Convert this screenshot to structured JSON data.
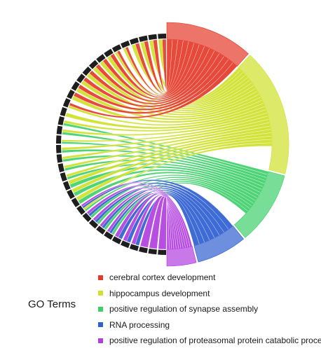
{
  "legend": {
    "title": "GO Terms",
    "items": [
      {
        "label": "cerebral cortex development",
        "color": "#e5392a"
      },
      {
        "label": "hippocampus development",
        "color": "#cfe12a"
      },
      {
        "label": "positive regulation of synapse assembly",
        "color": "#3fcf6a"
      },
      {
        "label": "RNA processing",
        "color": "#2f5fd0"
      },
      {
        "label": "positive regulation of proteasomal protein catabolic process",
        "color": "#b23ee0"
      }
    ]
  },
  "terms_arc_colors": [
    "#e5392a",
    "#cfe12a",
    "#3fcf6a",
    "#2f5fd0",
    "#b23ee0"
  ],
  "gene_count": 36,
  "gene_labels": [
    "",
    "",
    "",
    "",
    "",
    "",
    "",
    "",
    "",
    "",
    "",
    "",
    "",
    "",
    "",
    "",
    "",
    "",
    "",
    "",
    "",
    "",
    "",
    "",
    "",
    "",
    "",
    "",
    "",
    "",
    "",
    "",
    "",
    "",
    "",
    ""
  ]
}
